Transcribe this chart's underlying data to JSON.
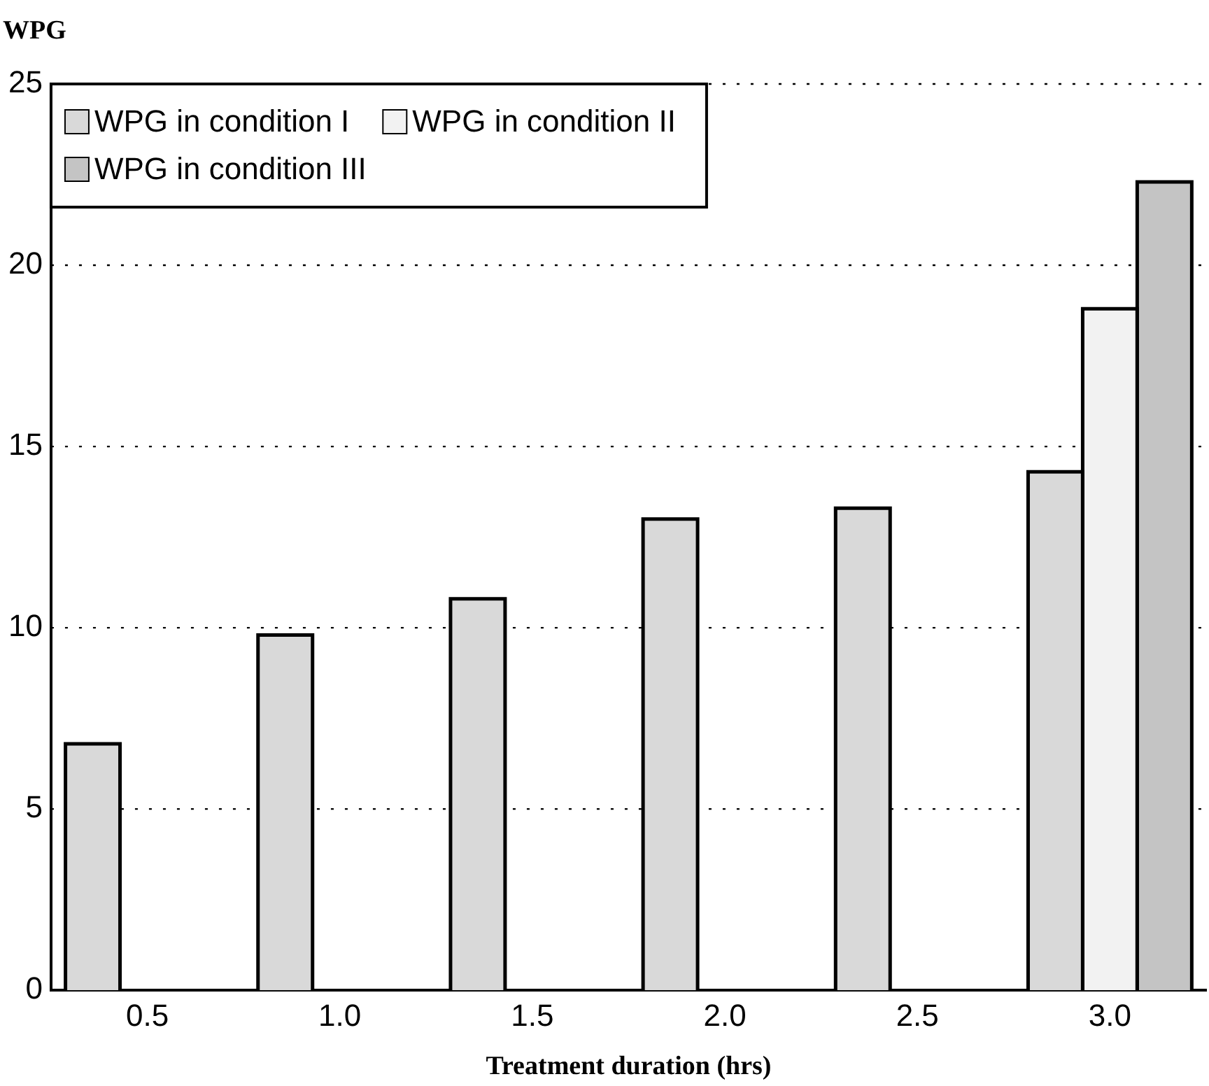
{
  "chart_data": {
    "type": "bar",
    "xlabel": "Treatment duration (hrs)",
    "ylabel": "WPG",
    "categories": [
      "0.5",
      "1.0",
      "1.5",
      "2.0",
      "2.5",
      "3.0"
    ],
    "series": [
      {
        "name": "WPG in condition I",
        "color": "#d9d9d9",
        "values": [
          6.8,
          9.8,
          10.8,
          13.0,
          13.3,
          14.3
        ]
      },
      {
        "name": "WPG in condition II",
        "color": "#f2f2f2",
        "values": [
          null,
          null,
          null,
          null,
          null,
          18.8
        ]
      },
      {
        "name": "WPG in condition III",
        "color": "#c4c4c4",
        "values": [
          null,
          null,
          null,
          null,
          null,
          22.3
        ]
      }
    ],
    "ylim": [
      0,
      25
    ],
    "yticks": [
      0,
      5,
      10,
      15,
      20,
      25
    ],
    "grid": "y",
    "legend": "top left"
  }
}
